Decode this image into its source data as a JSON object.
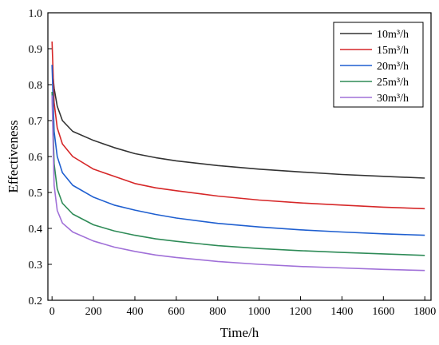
{
  "chart_data": {
    "type": "line",
    "title": "",
    "xlabel": "Time/h",
    "ylabel": "Effectiveness",
    "xlim": [
      -20,
      1830
    ],
    "ylim": [
      0.2,
      1.0
    ],
    "xticks": [
      0,
      200,
      400,
      600,
      800,
      1000,
      1200,
      1400,
      1600,
      1800
    ],
    "yticks": [
      0.2,
      0.3,
      0.4,
      0.5,
      0.6,
      0.7,
      0.8,
      0.9,
      1.0
    ],
    "grid": false,
    "legend_position": "top-right",
    "series": [
      {
        "name": "10m³/h",
        "color": "#333333",
        "points": [
          [
            0,
            0.855
          ],
          [
            10,
            0.79
          ],
          [
            25,
            0.74
          ],
          [
            50,
            0.7
          ],
          [
            100,
            0.67
          ],
          [
            200,
            0.645
          ],
          [
            300,
            0.625
          ],
          [
            400,
            0.608
          ],
          [
            500,
            0.597
          ],
          [
            600,
            0.588
          ],
          [
            800,
            0.575
          ],
          [
            1000,
            0.565
          ],
          [
            1200,
            0.557
          ],
          [
            1400,
            0.55
          ],
          [
            1600,
            0.545
          ],
          [
            1800,
            0.54
          ]
        ]
      },
      {
        "name": "15m³/h",
        "color": "#d62728",
        "points": [
          [
            0,
            0.92
          ],
          [
            10,
            0.75
          ],
          [
            25,
            0.68
          ],
          [
            50,
            0.635
          ],
          [
            100,
            0.6
          ],
          [
            200,
            0.565
          ],
          [
            300,
            0.545
          ],
          [
            400,
            0.525
          ],
          [
            500,
            0.513
          ],
          [
            600,
            0.505
          ],
          [
            800,
            0.49
          ],
          [
            1000,
            0.479
          ],
          [
            1200,
            0.471
          ],
          [
            1400,
            0.465
          ],
          [
            1600,
            0.459
          ],
          [
            1800,
            0.455
          ]
        ]
      },
      {
        "name": "20m³/h",
        "color": "#1f5fd0",
        "points": [
          [
            0,
            0.855
          ],
          [
            10,
            0.67
          ],
          [
            25,
            0.6
          ],
          [
            50,
            0.555
          ],
          [
            100,
            0.52
          ],
          [
            200,
            0.487
          ],
          [
            300,
            0.465
          ],
          [
            400,
            0.451
          ],
          [
            500,
            0.439
          ],
          [
            600,
            0.429
          ],
          [
            800,
            0.414
          ],
          [
            1000,
            0.404
          ],
          [
            1200,
            0.396
          ],
          [
            1400,
            0.39
          ],
          [
            1600,
            0.385
          ],
          [
            1800,
            0.381
          ]
        ]
      },
      {
        "name": "25m³/h",
        "color": "#2e8b57",
        "points": [
          [
            0,
            0.78
          ],
          [
            10,
            0.58
          ],
          [
            25,
            0.51
          ],
          [
            50,
            0.47
          ],
          [
            100,
            0.44
          ],
          [
            200,
            0.41
          ],
          [
            300,
            0.393
          ],
          [
            400,
            0.381
          ],
          [
            500,
            0.371
          ],
          [
            600,
            0.364
          ],
          [
            800,
            0.352
          ],
          [
            1000,
            0.344
          ],
          [
            1200,
            0.338
          ],
          [
            1400,
            0.333
          ],
          [
            1600,
            0.329
          ],
          [
            1800,
            0.325
          ]
        ]
      },
      {
        "name": "30m³/h",
        "color": "#a070d8",
        "points": [
          [
            0,
            0.77
          ],
          [
            10,
            0.52
          ],
          [
            25,
            0.45
          ],
          [
            50,
            0.415
          ],
          [
            100,
            0.39
          ],
          [
            200,
            0.365
          ],
          [
            300,
            0.348
          ],
          [
            400,
            0.336
          ],
          [
            500,
            0.326
          ],
          [
            600,
            0.319
          ],
          [
            800,
            0.308
          ],
          [
            1000,
            0.3
          ],
          [
            1200,
            0.294
          ],
          [
            1400,
            0.29
          ],
          [
            1600,
            0.286
          ],
          [
            1800,
            0.283
          ]
        ]
      }
    ]
  }
}
